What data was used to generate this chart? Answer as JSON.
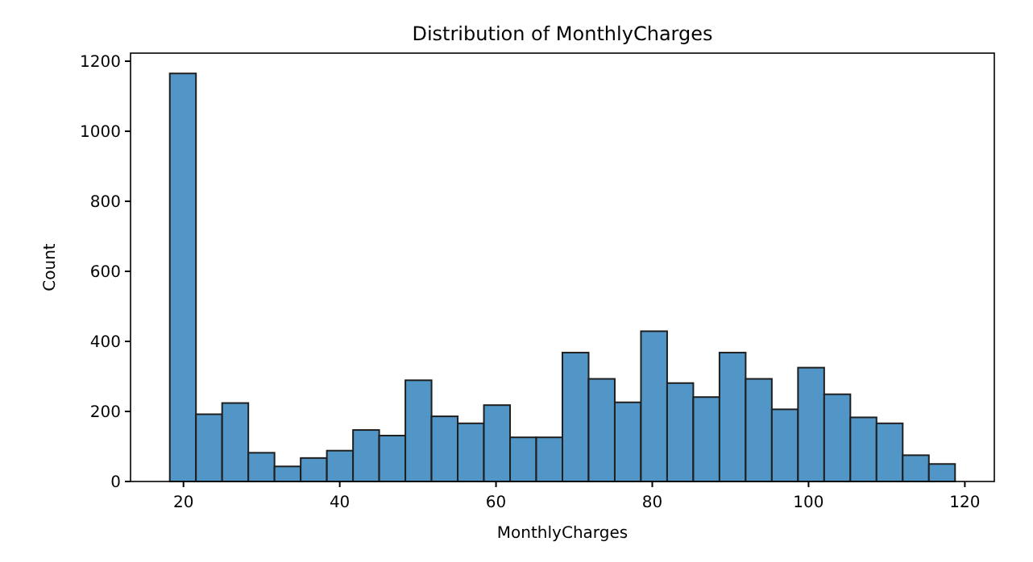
{
  "chart_data": {
    "type": "histogram",
    "title": "Distribution of MonthlyCharges",
    "xlabel": "MonthlyCharges",
    "ylabel": "Count",
    "bins": [
      18.25,
      21.6,
      24.95,
      28.3,
      31.65,
      35,
      38.35,
      41.7,
      45.05,
      48.4,
      51.75,
      55.1,
      58.45,
      61.8,
      65.15,
      68.5,
      71.85,
      75.2,
      78.55,
      81.9,
      85.25,
      88.6,
      91.95,
      95.3,
      98.65,
      102,
      105.35,
      108.7,
      112.05,
      115.4,
      118.75
    ],
    "values": [
      1165,
      192,
      224,
      82,
      43,
      67,
      88,
      147,
      131,
      289,
      186,
      166,
      218,
      126,
      126,
      368,
      293,
      226,
      429,
      281,
      241,
      368,
      293,
      206,
      325,
      249,
      183,
      166,
      75,
      50
    ],
    "color": "#5196c6",
    "xlim": [
      13.225,
      123.775
    ],
    "xticks": [
      20,
      40,
      60,
      80,
      100,
      120
    ],
    "ylim": [
      0,
      1223
    ],
    "yticks": [
      0,
      200,
      400,
      600,
      800,
      1000,
      1200
    ],
    "grid": false
  }
}
